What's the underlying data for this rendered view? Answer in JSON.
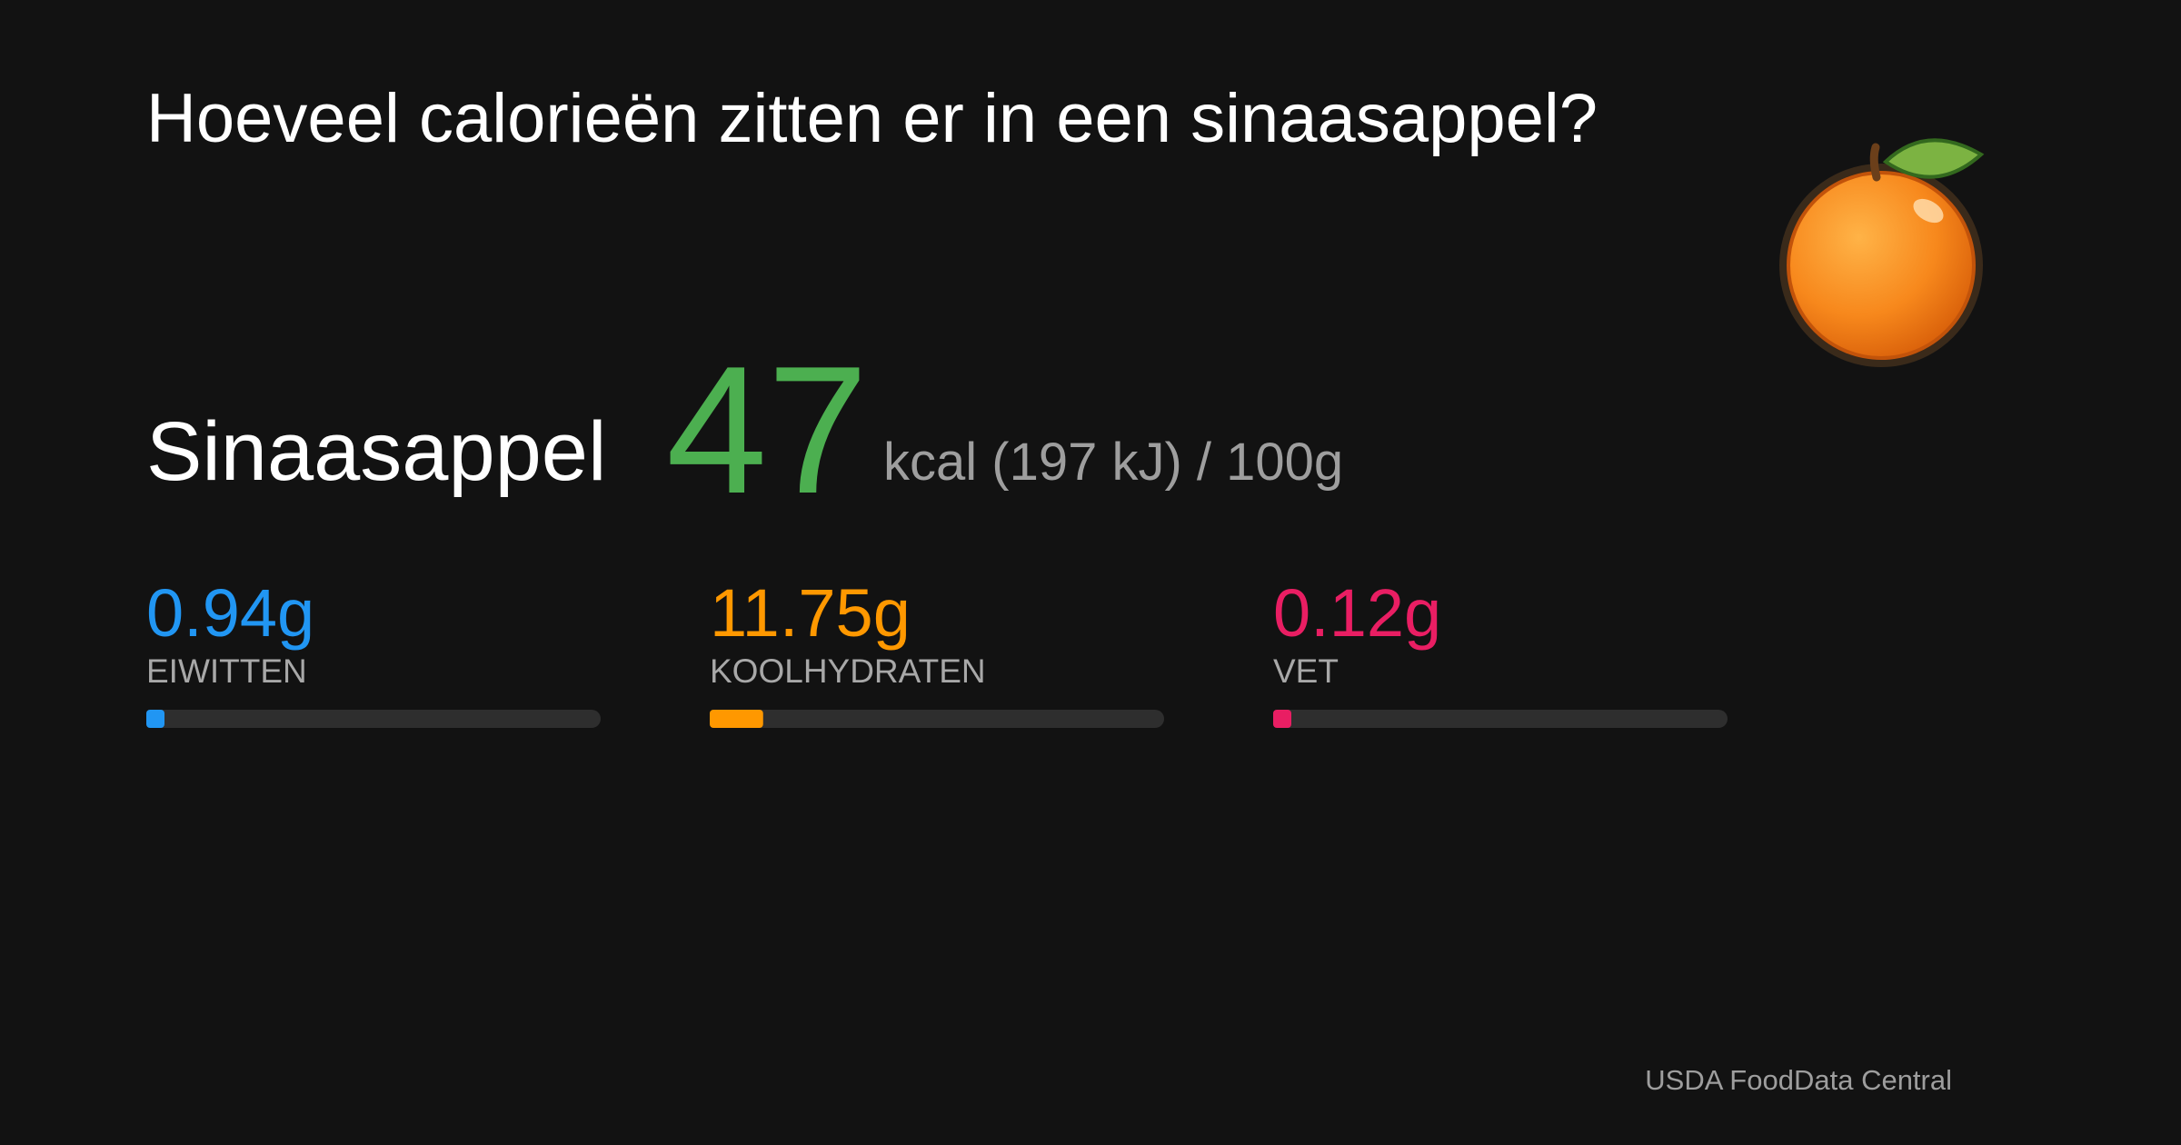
{
  "header": {
    "title": "Hoeveel calorieën zitten er in een sinaasappel?"
  },
  "food": {
    "name": "Sinaasappel",
    "calories": 47,
    "calories_color": "#4caf50",
    "unit": "kcal (197 kJ) / 100g"
  },
  "macros": [
    {
      "value": 0.94,
      "label": "0.94g",
      "name": "EIWITTEN",
      "color": "#2196f3"
    },
    {
      "value": 11.75,
      "label": "11.75g",
      "name": "KOOLHYDRATEN",
      "color": "#ff9800"
    },
    {
      "value": 0.12,
      "label": "0.12g",
      "name": "VET",
      "color": "#e91e63"
    }
  ],
  "source": "USDA FoodData Central"
}
